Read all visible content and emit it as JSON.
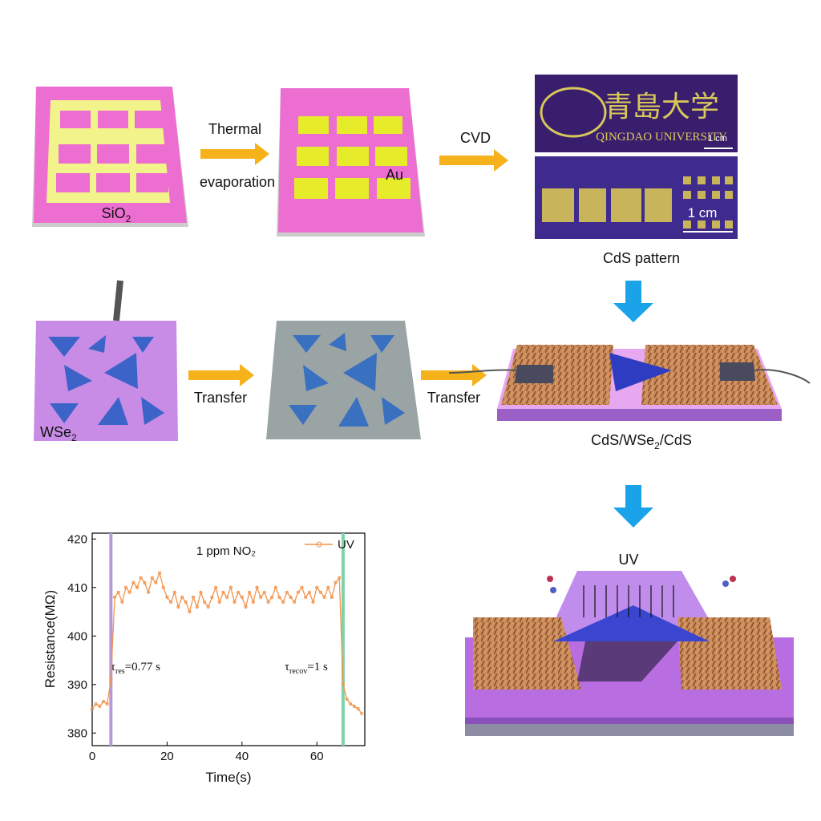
{
  "labels": {
    "thermal": "Thermal",
    "evaporation": "evaporation",
    "au": "Au",
    "sio2": {
      "base": "SiO",
      "sub": "2"
    },
    "cvd": "CVD",
    "university_cn": "青島大学",
    "university": "QINGDAO UNIVERSITY",
    "scale_top": "1 cm",
    "scale_bottom": "1 cm",
    "cds_pattern": "CdS pattern",
    "wse2": {
      "base": "WSe",
      "sub": "2"
    },
    "transfer_1": "Transfer",
    "transfer_2": "Transfer",
    "device": {
      "a": "CdS/WSe",
      "sub": "2",
      "b": "/CdS"
    },
    "uv": "UV"
  },
  "chart_data": {
    "type": "line",
    "xlabel": "Time(s)",
    "ylabel": "Resistance(MΩ)",
    "annotation": "1 ppm NO₂",
    "tau_res": {
      "symbol": "τ",
      "sub": "res",
      "rest": "=0.77 s"
    },
    "tau_recov": {
      "symbol": "τ",
      "sub": "recov",
      "rest": "=1 s"
    },
    "xlim": [
      0,
      72.8
    ],
    "ylim": [
      377.4,
      421.2
    ],
    "xticks": [
      0,
      20,
      40,
      60
    ],
    "yticks": [
      380,
      390,
      400,
      410,
      420
    ],
    "markers": [
      {
        "x": 5,
        "color": "#b59ad9"
      },
      {
        "x": 67,
        "color": "#7fd3a8"
      }
    ],
    "legend": "upper right",
    "x": [
      0,
      1,
      2,
      3,
      4,
      5,
      6,
      7,
      8,
      9,
      10,
      11,
      12,
      13,
      14,
      15,
      16,
      17,
      18,
      19,
      20,
      21,
      22,
      23,
      24,
      25,
      26,
      27,
      28,
      29,
      30,
      31,
      32,
      33,
      34,
      35,
      36,
      37,
      38,
      39,
      40,
      41,
      42,
      43,
      44,
      45,
      46,
      47,
      48,
      49,
      50,
      51,
      52,
      53,
      54,
      55,
      56,
      57,
      58,
      59,
      60,
      61,
      62,
      63,
      64,
      65,
      66,
      67,
      68,
      69,
      70,
      71,
      72
    ],
    "series": [
      {
        "name": "UV",
        "color": "#f4934a",
        "values": [
          385,
          386,
          385.5,
          386.5,
          386,
          391,
          408,
          409,
          407,
          410,
          409,
          411,
          410,
          412,
          411,
          409,
          412,
          411,
          413,
          410,
          408,
          407,
          409,
          406,
          408,
          407,
          405,
          408,
          406,
          409,
          407,
          406,
          408,
          410,
          407,
          409,
          408,
          410,
          407,
          409,
          408,
          406,
          409,
          407,
          410,
          408,
          409,
          407,
          408,
          410,
          408,
          407,
          409,
          408,
          407,
          409,
          410,
          408,
          409,
          407,
          410,
          409,
          408,
          410,
          408,
          411,
          412,
          390,
          387,
          386,
          385.5,
          385,
          384
        ]
      }
    ]
  }
}
